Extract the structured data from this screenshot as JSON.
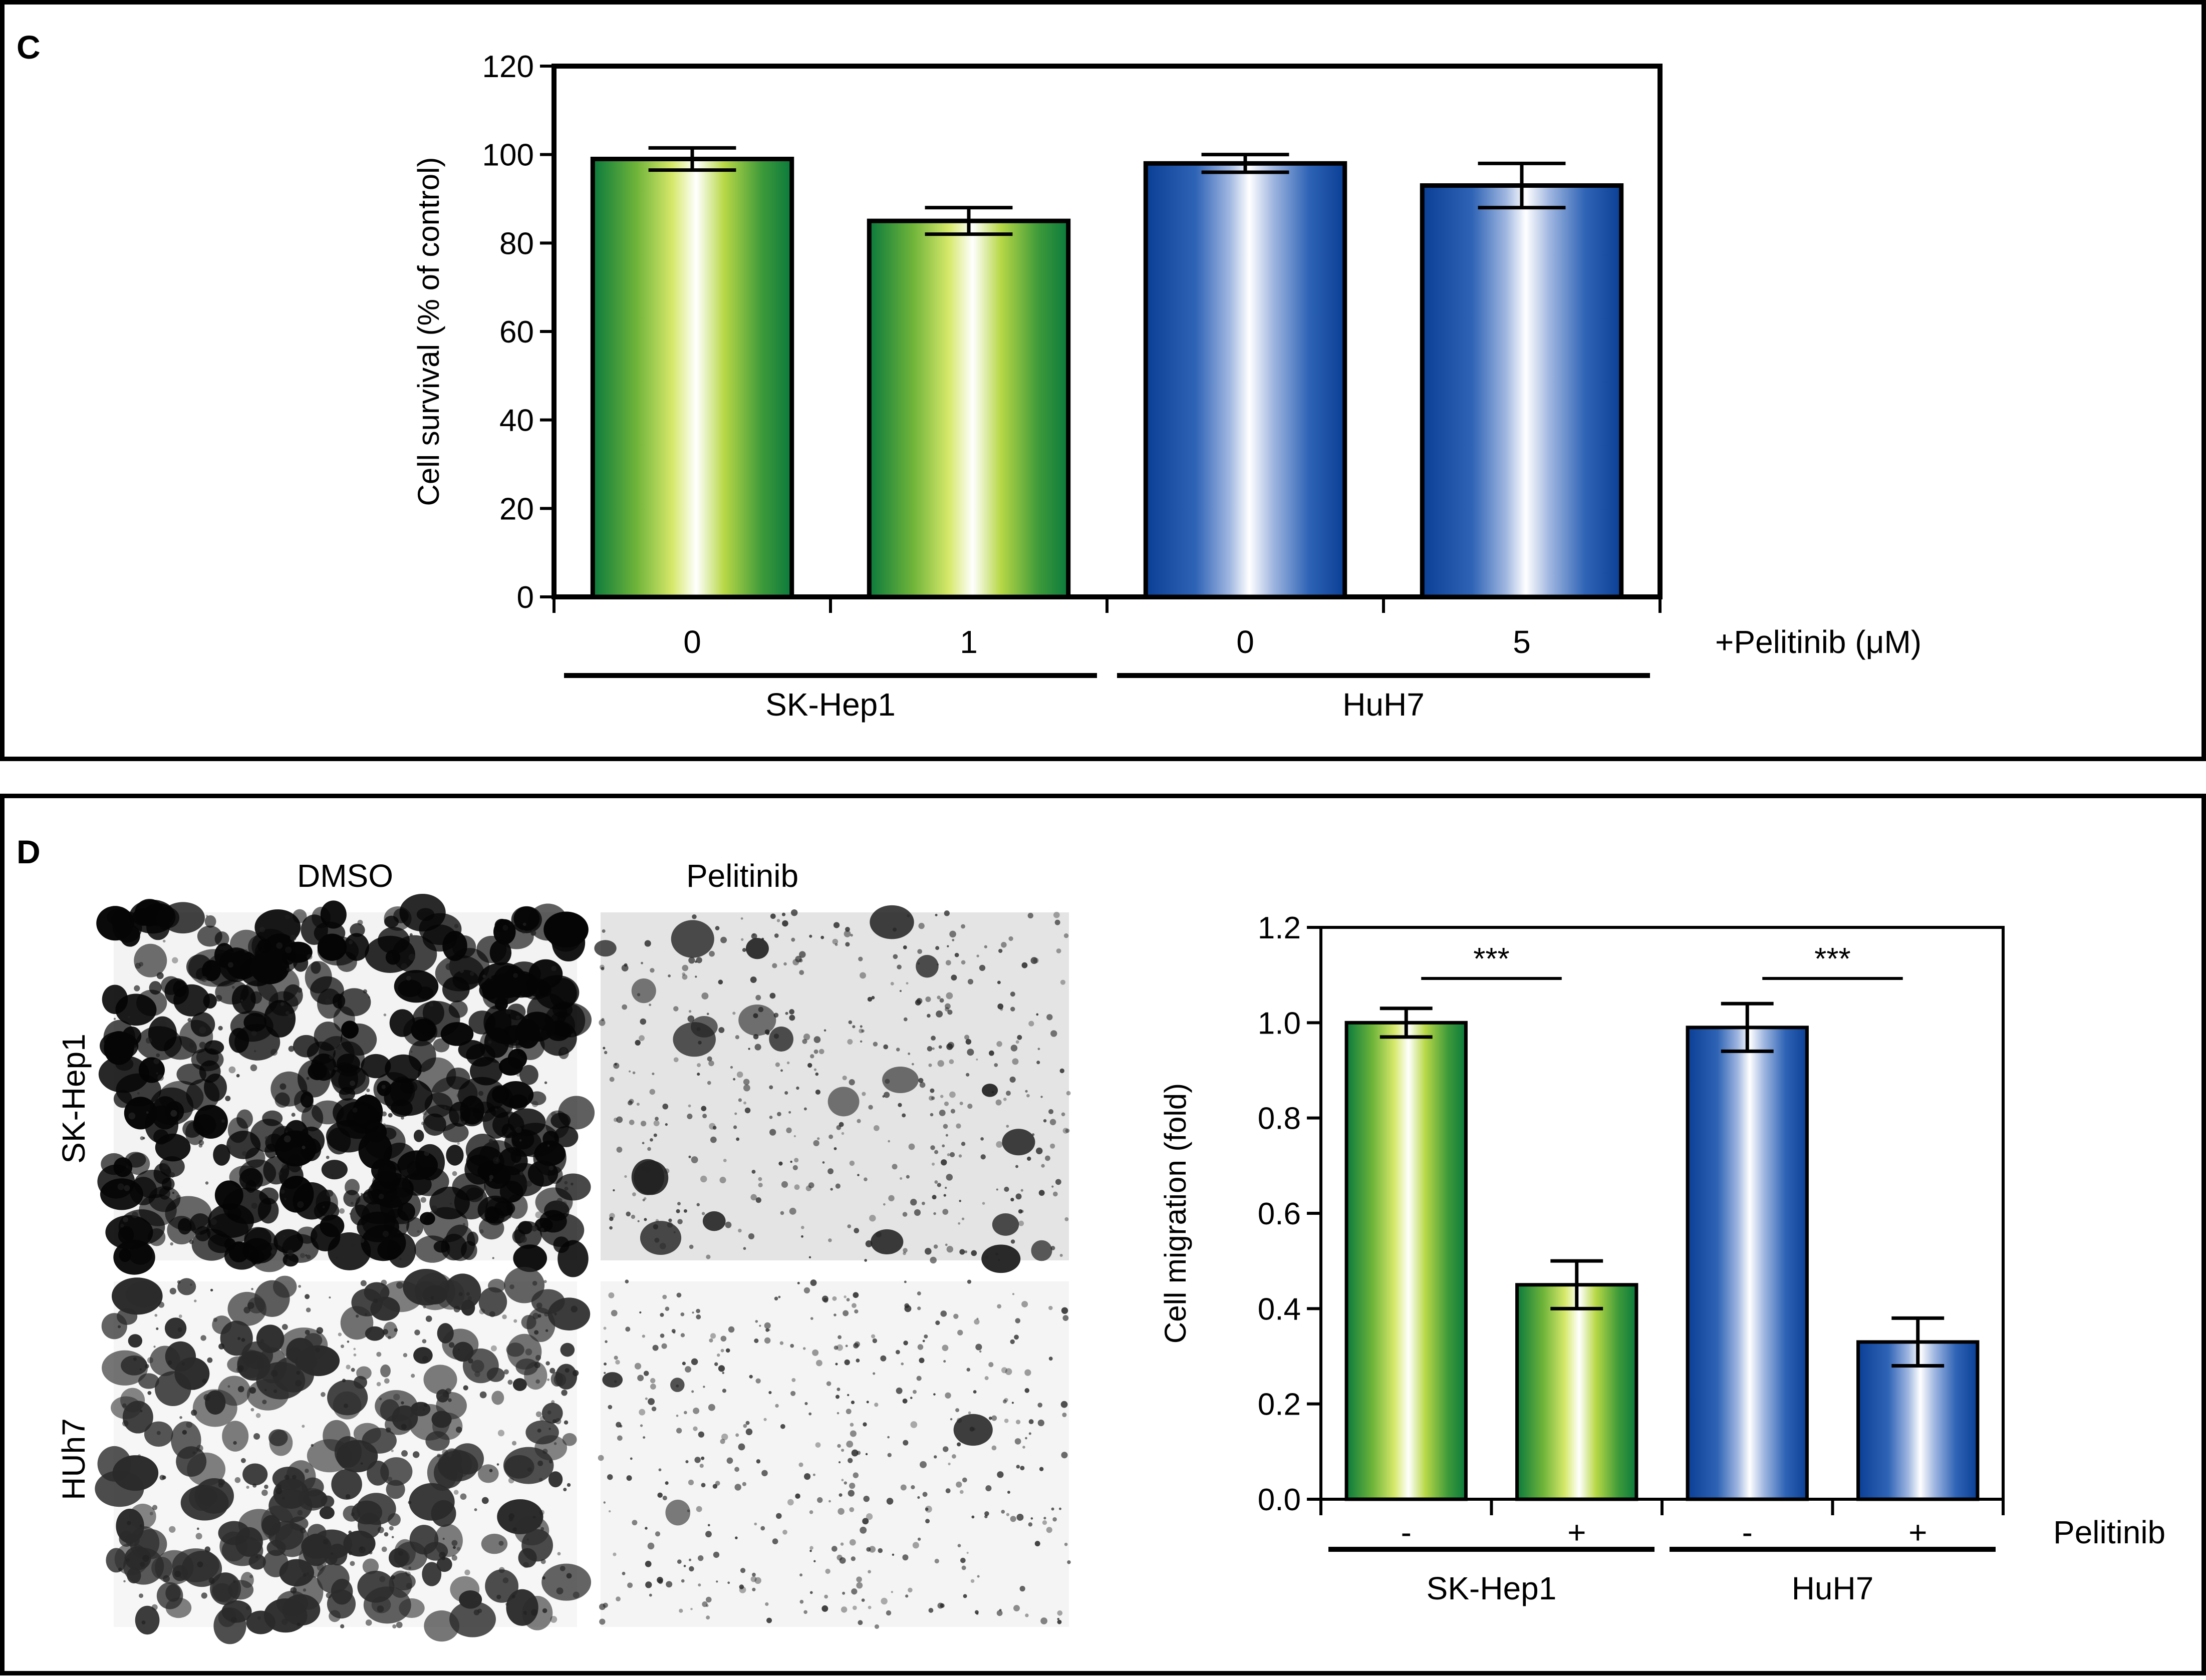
{
  "panel_c": {
    "letter": "C",
    "chart_data": {
      "type": "bar",
      "ylabel": "Cell survival (% of control)",
      "ylim": [
        0,
        120
      ],
      "yticks": [
        "0",
        "20",
        "40",
        "60",
        "80",
        "100",
        "120"
      ],
      "categories": [
        "0",
        "1",
        "0",
        "5"
      ],
      "values": [
        99,
        85,
        98,
        93
      ],
      "errors": [
        2.5,
        3,
        2,
        5
      ],
      "bar_colors": [
        "green",
        "green",
        "blue",
        "blue"
      ],
      "treatment_label": "+Pelitinib (μM)",
      "groups": [
        "SK-Hep1",
        "HuH7"
      ]
    }
  },
  "panel_d": {
    "letter": "D",
    "image_columns": [
      "DMSO",
      "Pelitinib"
    ],
    "image_rows": [
      "SK-Hep1",
      "HUh7"
    ],
    "chart_data": {
      "type": "bar",
      "ylabel": "Cell migration (fold)",
      "ylim": [
        0,
        1.2
      ],
      "yticks": [
        "0.0",
        "0.2",
        "0.4",
        "0.6",
        "0.8",
        "1.0",
        "1.2"
      ],
      "categories": [
        "-",
        "+",
        "-",
        "+"
      ],
      "values": [
        1.0,
        0.45,
        0.99,
        0.33
      ],
      "errors": [
        0.03,
        0.05,
        0.05,
        0.05
      ],
      "bar_colors": [
        "green",
        "green",
        "blue",
        "blue"
      ],
      "treatment_label": "Pelitinib",
      "groups": [
        "SK-Hep1",
        "HuH7"
      ],
      "significance": [
        "***",
        "***"
      ]
    }
  },
  "colors": {
    "green_dark": "#0a7a3c",
    "green_light": "#c8e04a",
    "blue_dark": "#0a3f96",
    "frame": "#000000"
  }
}
